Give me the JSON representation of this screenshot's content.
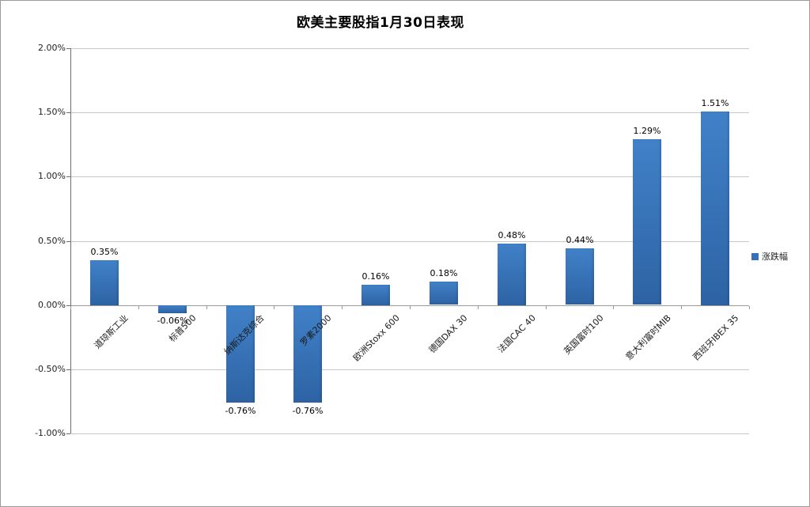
{
  "chart_data": {
    "type": "bar",
    "title": "欧美主要股指1月30日表现",
    "categories": [
      "道琼斯工业",
      "标普500",
      "纳斯达克综合",
      "罗素2000",
      "欧洲Stoxx 600",
      "德国DAX 30",
      "法国CAC 40",
      "英国富时100",
      "意大利富时MIB",
      "西班牙IBEX 35"
    ],
    "series": [
      {
        "name": "涨跌幅",
        "values": [
          0.35,
          -0.06,
          -0.76,
          -0.76,
          0.16,
          0.18,
          0.48,
          0.44,
          1.29,
          1.51
        ],
        "data_labels": [
          "0.35%",
          "-0.06%",
          "-0.76%",
          "-0.76%",
          "0.16%",
          "0.18%",
          "0.48%",
          "0.44%",
          "1.29%",
          "1.51%"
        ]
      }
    ],
    "xlabel": "",
    "ylabel": "",
    "ylim": [
      -1,
      2
    ],
    "yticks": [
      {
        "value": 2.0,
        "label": "2.00%"
      },
      {
        "value": 1.5,
        "label": "1.50%"
      },
      {
        "value": 1.0,
        "label": "1.00%"
      },
      {
        "value": 0.5,
        "label": "0.50%"
      },
      {
        "value": 0.0,
        "label": "0.00%"
      },
      {
        "value": -0.5,
        "label": "-0.50%"
      },
      {
        "value": -1.0,
        "label": "-1.00%"
      }
    ],
    "grid": true,
    "legend_position": "right",
    "colors": {
      "bar_gradient_top": "#4181c8",
      "bar_gradient_bottom": "#2d63a4",
      "legend_swatch": "#3471b7",
      "gridline": "#c8c8c8",
      "axis": "#6e6e6e"
    }
  }
}
